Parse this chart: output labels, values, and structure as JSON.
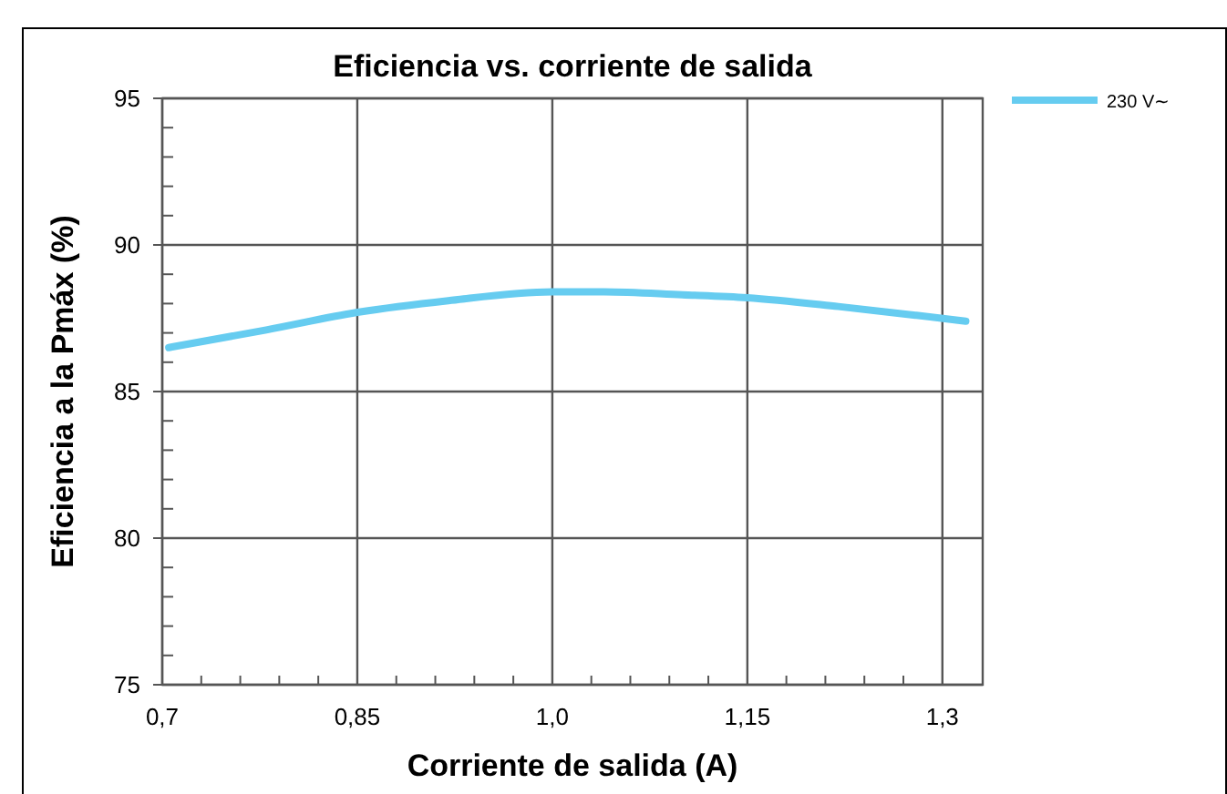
{
  "chart_data": {
    "type": "line",
    "title": "Eficiencia vs. corriente de salida",
    "xlabel": "Corriente de salida (A)",
    "ylabel": "Eficiencia a la Pmáx (%)",
    "xlim": [
      0.7,
      1.331
    ],
    "ylim": [
      75,
      95
    ],
    "xticks": [
      {
        "value": 0.7,
        "label": "0,7"
      },
      {
        "value": 0.73,
        "label": null
      },
      {
        "value": 0.76,
        "label": null
      },
      {
        "value": 0.79,
        "label": null
      },
      {
        "value": 0.82,
        "label": null
      },
      {
        "value": 0.85,
        "label": "0,85"
      },
      {
        "value": 0.88,
        "label": null
      },
      {
        "value": 0.91,
        "label": null
      },
      {
        "value": 0.94,
        "label": null
      },
      {
        "value": 0.97,
        "label": null
      },
      {
        "value": 1.0,
        "label": "1,0"
      },
      {
        "value": 1.03,
        "label": null
      },
      {
        "value": 1.06,
        "label": null
      },
      {
        "value": 1.09,
        "label": null
      },
      {
        "value": 1.12,
        "label": null
      },
      {
        "value": 1.15,
        "label": "1,15"
      },
      {
        "value": 1.18,
        "label": null
      },
      {
        "value": 1.21,
        "label": null
      },
      {
        "value": 1.24,
        "label": null
      },
      {
        "value": 1.27,
        "label": null
      },
      {
        "value": 1.3,
        "label": "1,3"
      }
    ],
    "yticks": [
      75,
      {
        "value": 76,
        "label": null
      },
      {
        "value": 77,
        "label": null
      },
      {
        "value": 78,
        "label": null
      },
      {
        "value": 79,
        "label": null
      },
      80,
      {
        "value": 81,
        "label": null
      },
      {
        "value": 82,
        "label": null
      },
      {
        "value": 83,
        "label": null
      },
      {
        "value": 84,
        "label": null
      },
      85,
      {
        "value": 86,
        "label": null
      },
      {
        "value": 87,
        "label": null
      },
      {
        "value": 88,
        "label": null
      },
      {
        "value": 89,
        "label": null
      },
      90,
      {
        "value": 91,
        "label": null
      },
      {
        "value": 92,
        "label": null
      },
      {
        "value": 93,
        "label": null
      },
      {
        "value": 94,
        "label": null
      },
      95
    ],
    "grid": true,
    "legend": "top right",
    "line_style": "solid",
    "marker": "none",
    "series": [
      {
        "name": "230 V∼",
        "color": "#66ccf0",
        "x": [
          0.705,
          0.78,
          0.85,
          0.92,
          1.0,
          1.04,
          1.1,
          1.15,
          1.22,
          1.28,
          1.318
        ],
        "values": [
          86.5,
          87.1,
          87.7,
          88.1,
          88.4,
          88.4,
          88.3,
          88.2,
          87.9,
          87.6,
          87.4
        ]
      }
    ]
  }
}
